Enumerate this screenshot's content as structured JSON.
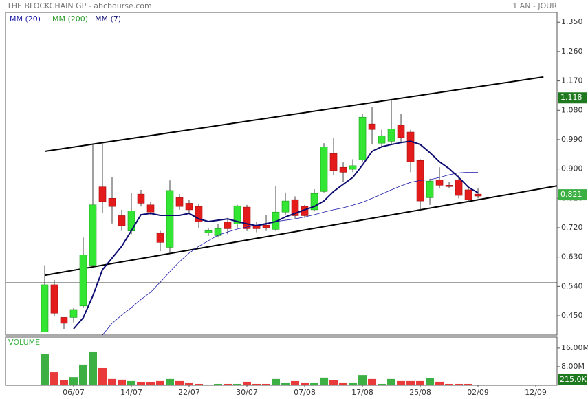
{
  "chart_data": {
    "type": "candlestick",
    "title": "THE BLOCKCHAIN GP - abcbourse.com",
    "subtitle": "1 AN - JOUR",
    "volume_title": "VOLUME",
    "xlim": [
      -4.07,
      53.21
    ],
    "xticks": [
      {
        "value": 3,
        "label": "06/07"
      },
      {
        "value": 9,
        "label": "14/07"
      },
      {
        "value": 15,
        "label": "22/07"
      },
      {
        "value": 21,
        "label": "30/07"
      },
      {
        "value": 27,
        "label": "07/08"
      },
      {
        "value": 33,
        "label": "17/08"
      },
      {
        "value": 39,
        "label": "25/08"
      },
      {
        "value": 45,
        "label": "02/09"
      },
      {
        "value": 51,
        "label": "12/09"
      }
    ],
    "ylim": [
      0.391,
      1.38
    ],
    "yticks": [
      {
        "value": 1.35,
        "label": "1.350"
      },
      {
        "value": 1.26,
        "label": "1.260"
      },
      {
        "value": 1.17,
        "label": "1.170"
      },
      {
        "value": 1.08,
        "label": "1.080"
      },
      {
        "value": 0.99,
        "label": "0.990"
      },
      {
        "value": 0.9,
        "label": "0.900"
      },
      {
        "value": 0.81,
        "label": "0.810"
      },
      {
        "value": 0.72,
        "label": "0.720"
      },
      {
        "value": 0.63,
        "label": "0.630"
      },
      {
        "value": 0.54,
        "label": "0.540"
      },
      {
        "value": 0.45,
        "label": "0.450"
      }
    ],
    "up_color": "#33e633",
    "down_color": "#e41b1b",
    "open": [
      0.4,
      0.545,
      0.445,
      0.445,
      0.48,
      0.605,
      0.845,
      0.81,
      0.757,
      0.71,
      0.823,
      0.79,
      0.703,
      0.66,
      0.812,
      0.795,
      0.785,
      0.705,
      0.696,
      0.738,
      0.732,
      0.783,
      0.728,
      0.728,
      0.715,
      0.768,
      0.806,
      0.785,
      0.775,
      0.831,
      0.947,
      0.905,
      0.899,
      0.928,
      1.038,
      0.979,
      0.985,
      1.034,
      1.013,
      0.926,
      0.812,
      0.867,
      0.85,
      0.867,
      0.836,
      0.823
    ],
    "high": [
      0.605,
      0.56,
      0.445,
      0.475,
      0.69,
      0.975,
      0.98,
      0.874,
      0.775,
      0.827,
      0.836,
      0.8,
      0.71,
      0.865,
      0.823,
      0.806,
      0.794,
      0.72,
      0.732,
      0.75,
      0.79,
      0.79,
      0.738,
      0.76,
      0.848,
      0.828,
      0.816,
      0.79,
      0.838,
      0.979,
      0.996,
      0.92,
      0.93,
      1.07,
      1.09,
      1.02,
      1.112,
      1.07,
      1.02,
      0.93,
      0.87,
      0.905,
      0.86,
      0.88,
      0.845,
      0.84
    ],
    "low": [
      0.4,
      0.45,
      0.41,
      0.43,
      0.475,
      0.6,
      0.765,
      0.733,
      0.71,
      0.7,
      0.785,
      0.76,
      0.648,
      0.642,
      0.775,
      0.764,
      0.72,
      0.695,
      0.69,
      0.7,
      0.72,
      0.71,
      0.706,
      0.71,
      0.71,
      0.76,
      0.748,
      0.75,
      0.77,
      0.828,
      0.88,
      0.86,
      0.89,
      0.92,
      0.975,
      0.965,
      0.975,
      0.98,
      0.89,
      0.775,
      0.79,
      0.84,
      0.84,
      0.81,
      0.8,
      0.81
    ],
    "close": [
      0.545,
      0.458,
      0.427,
      0.469,
      0.637,
      0.79,
      0.8,
      0.785,
      0.726,
      0.772,
      0.795,
      0.768,
      0.675,
      0.834,
      0.785,
      0.775,
      0.738,
      0.711,
      0.717,
      0.717,
      0.787,
      0.717,
      0.717,
      0.72,
      0.768,
      0.802,
      0.757,
      0.757,
      0.825,
      0.968,
      0.895,
      0.89,
      0.91,
      1.059,
      1.021,
      1.002,
      1.023,
      0.996,
      0.922,
      0.802,
      0.863,
      0.85,
      0.846,
      0.819,
      0.806,
      0.817
    ],
    "volume": [
      13300000,
      5600000,
      2100000,
      3500000,
      8900000,
      14500000,
      7400000,
      2700000,
      2400000,
      1800000,
      1200000,
      1200000,
      1800000,
      2700000,
      1800000,
      900000,
      600000,
      300000,
      600000,
      600000,
      600000,
      1500000,
      600000,
      600000,
      2700000,
      900000,
      1800000,
      900000,
      900000,
      3300000,
      2100000,
      900000,
      900000,
      4400000,
      2700000,
      600000,
      2700000,
      1800000,
      1800000,
      1800000,
      3000000,
      1500000,
      600000,
      600000,
      600000,
      215000
    ],
    "volume_ylim": [
      0,
      20700000
    ],
    "volume_yticks": [
      {
        "value": 16000000,
        "label": "16.00M"
      },
      {
        "value": 8000000,
        "label": "8.00M"
      }
    ],
    "volume_marker": {
      "value": 215000,
      "label": "215.0K"
    },
    "price_markers": [
      {
        "value": 1.118,
        "label": "1.118",
        "color": "#1f7a1f"
      },
      {
        "value": 0.821,
        "label": "0.821",
        "color": "#3cb043"
      }
    ],
    "moving_averages": [
      {
        "name": "MM (20)",
        "color": "#1a1aa8",
        "width": 0.8,
        "values": [
          null,
          null,
          null,
          null,
          null,
          null,
          0.391,
          0.427,
          0.452,
          0.475,
          0.5,
          0.522,
          0.553,
          0.585,
          0.616,
          0.642,
          0.663,
          0.68,
          0.697,
          0.707,
          0.716,
          0.722,
          0.728,
          0.734,
          0.739,
          0.743,
          0.747,
          0.753,
          0.76,
          0.768,
          0.775,
          0.781,
          0.789,
          0.798,
          0.81,
          0.823,
          0.836,
          0.848,
          0.859,
          0.865,
          0.867,
          0.874,
          0.882,
          0.888,
          0.89,
          0.89
        ]
      },
      {
        "name": "MM (200)",
        "color": "#2e9a2e"
      },
      {
        "name": "MM (7)",
        "color": "#0a0a70",
        "width": 2,
        "values": [
          null,
          null,
          null,
          0.41,
          0.444,
          0.511,
          0.591,
          0.627,
          0.663,
          0.711,
          0.76,
          0.764,
          0.758,
          0.758,
          0.758,
          0.764,
          0.747,
          0.739,
          0.743,
          0.747,
          0.739,
          0.732,
          0.726,
          0.732,
          0.739,
          0.753,
          0.764,
          0.775,
          0.785,
          0.802,
          0.831,
          0.853,
          0.874,
          0.912,
          0.954,
          0.968,
          0.975,
          0.981,
          0.985,
          0.975,
          0.95,
          0.922,
          0.901,
          0.874,
          0.844,
          0.827
        ]
      }
    ],
    "trend_lines": [
      {
        "x": [
          0,
          51.8
        ],
        "y": [
          0.954,
          1.182
        ]
      },
      {
        "x": [
          0,
          53.21
        ],
        "y": [
          0.574,
          0.848
        ]
      },
      {
        "x": [
          -4.07,
          53.21
        ],
        "y": [
          0.551,
          0.551
        ]
      }
    ]
  }
}
